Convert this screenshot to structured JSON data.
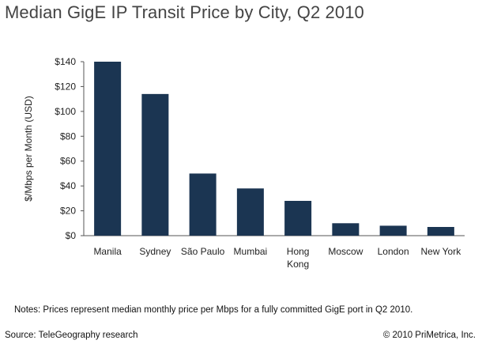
{
  "title": "Median GigE IP Transit Price by City, Q2 2010",
  "notes": "Notes: Prices represent median monthly price per Mbps for a fully committed GigE port in Q2 2010.",
  "source": "Source: TeleGeography research",
  "copyright": "© 2010 PriMetrica, Inc.",
  "colors": {
    "bar": "#1b3552",
    "axis": "#555555",
    "text": "#222222"
  },
  "chart_data": {
    "type": "bar",
    "title": "Median GigE IP Transit Price by City, Q2 2010",
    "xlabel": "",
    "ylabel": "$/Mbps per Month (USD)",
    "categories": [
      "Manila",
      "Sydney",
      "São Paulo",
      "Mumbai",
      "Hong Kong",
      "Moscow",
      "London",
      "New York"
    ],
    "category_lines": [
      [
        "Manila"
      ],
      [
        "Sydney"
      ],
      [
        "São Paulo"
      ],
      [
        "Mumbai"
      ],
      [
        "Hong",
        "Kong"
      ],
      [
        "Moscow"
      ],
      [
        "London"
      ],
      [
        "New York"
      ]
    ],
    "values": [
      140,
      114,
      50,
      38,
      28,
      10,
      8,
      7
    ],
    "ylim": [
      0,
      140
    ],
    "yticks": [
      0,
      20,
      40,
      60,
      80,
      100,
      120,
      140
    ],
    "ytick_labels": [
      "$0",
      "$20",
      "$40",
      "$60",
      "$80",
      "$100",
      "$120",
      "$140"
    ],
    "grid": false,
    "legend": "none"
  }
}
